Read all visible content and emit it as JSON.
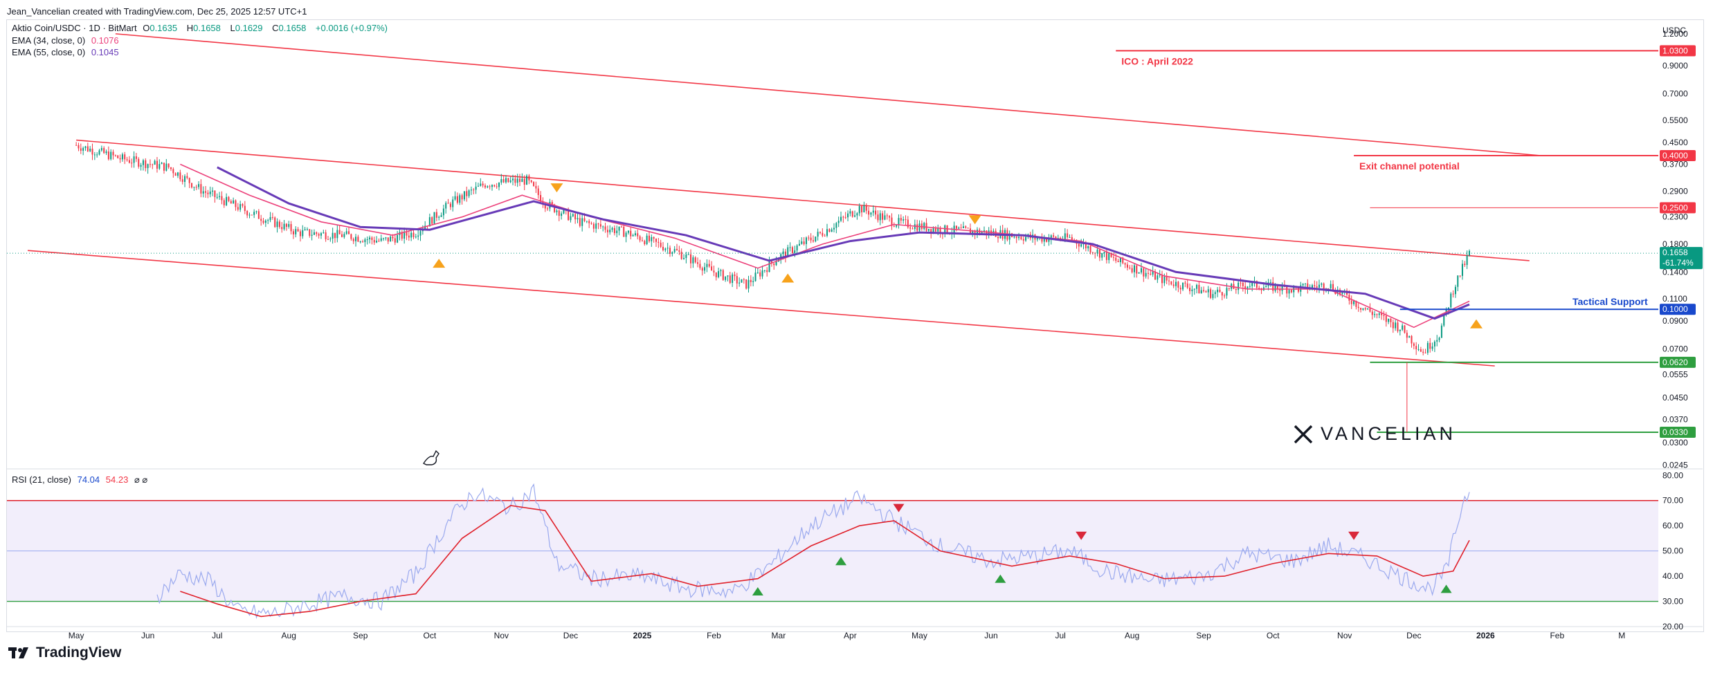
{
  "header": {
    "credit": "Jean_Vancelian created with TradingView.com, Dec 25, 2025 12:57 UTC+1"
  },
  "legend": {
    "symbol": "Aktio Coin/USDC · 1D · BitMart",
    "o_label": "O",
    "o": "0.1635",
    "h_label": "H",
    "h": "0.1658",
    "l_label": "L",
    "l": "0.1629",
    "c_label": "C",
    "c": "0.1658",
    "change": "+0.0016 (+0.97%)",
    "ema34_label": "EMA (34, close, 0)",
    "ema34": "0.1076",
    "ema55_label": "EMA (55, close, 0)",
    "ema55": "0.1045",
    "rsi_label": "RSI (21, close)",
    "rsi_value": "74.04",
    "rsi_ma": "54.23",
    "rsi_extra": "⌀ ⌀"
  },
  "brand": {
    "name": "TradingView",
    "watermark": "VANCELIAN"
  },
  "colors": {
    "up": "#089981",
    "down": "#f23645",
    "ema34": "#ec407a",
    "ema55": "#673ab7",
    "channel": "#f23645",
    "support": "#1848cc",
    "green_level": "#2e9e3f",
    "rsi": "#9aa9ee",
    "rsi_ma": "#e0202a"
  },
  "chart_data": [
    {
      "type": "candlestick",
      "title": "Aktio Coin/USDC · 1D · BitMart",
      "y_scale": "log",
      "y_unit": "USDC",
      "ylim": [
        0.024,
        1.35
      ],
      "x_range": [
        "2024-04-01",
        "2026-03-15"
      ],
      "x_ticks": [
        {
          "date": "2024-05-01",
          "label": "May"
        },
        {
          "date": "2024-06-01",
          "label": "Jun"
        },
        {
          "date": "2024-07-01",
          "label": "Jul"
        },
        {
          "date": "2024-08-01",
          "label": "Aug"
        },
        {
          "date": "2024-09-01",
          "label": "Sep"
        },
        {
          "date": "2024-10-01",
          "label": "Oct"
        },
        {
          "date": "2024-11-01",
          "label": "Nov"
        },
        {
          "date": "2024-12-01",
          "label": "Dec"
        },
        {
          "date": "2025-01-01",
          "label": "2025"
        },
        {
          "date": "2025-02-01",
          "label": "Feb"
        },
        {
          "date": "2025-03-01",
          "label": "Mar"
        },
        {
          "date": "2025-04-01",
          "label": "Apr"
        },
        {
          "date": "2025-05-01",
          "label": "May"
        },
        {
          "date": "2025-06-01",
          "label": "Jun"
        },
        {
          "date": "2025-07-01",
          "label": "Jul"
        },
        {
          "date": "2025-08-01",
          "label": "Aug"
        },
        {
          "date": "2025-09-01",
          "label": "Sep"
        },
        {
          "date": "2025-10-01",
          "label": "Oct"
        },
        {
          "date": "2025-11-01",
          "label": "Nov"
        },
        {
          "date": "2025-12-01",
          "label": "Dec"
        },
        {
          "date": "2026-01-01",
          "label": "2026"
        },
        {
          "date": "2026-02-01",
          "label": "Feb"
        },
        {
          "date": "2026-03-01",
          "label": "M"
        }
      ],
      "y_ticks": [
        {
          "value": 1.2,
          "label": "1.2000"
        },
        {
          "value": 0.9,
          "label": "0.9000"
        },
        {
          "value": 0.7,
          "label": "0.7000"
        },
        {
          "value": 0.55,
          "label": "0.5500"
        },
        {
          "value": 0.45,
          "label": "0.4500"
        },
        {
          "value": 0.37,
          "label": "0.3700"
        },
        {
          "value": 0.29,
          "label": "0.2900"
        },
        {
          "value": 0.23,
          "label": "0.2300"
        },
        {
          "value": 0.18,
          "label": "0.1800"
        },
        {
          "value": 0.14,
          "label": "0.1400"
        },
        {
          "value": 0.11,
          "label": "0.1100"
        },
        {
          "value": 0.09,
          "label": "0.0900"
        },
        {
          "value": 0.07,
          "label": "0.0700"
        },
        {
          "value": 0.0555,
          "label": "0.0555"
        },
        {
          "value": 0.045,
          "label": "0.0450"
        },
        {
          "value": 0.037,
          "label": "0.0370"
        },
        {
          "value": 0.03,
          "label": "0.0300"
        },
        {
          "value": 0.0245,
          "label": "0.0245"
        }
      ],
      "price_path": [
        {
          "date": "2024-05-01",
          "close": 0.44
        },
        {
          "date": "2024-05-20",
          "close": 0.39
        },
        {
          "date": "2024-06-10",
          "close": 0.36
        },
        {
          "date": "2024-06-25",
          "close": 0.29
        },
        {
          "date": "2024-07-15",
          "close": 0.24
        },
        {
          "date": "2024-08-05",
          "close": 0.2
        },
        {
          "date": "2024-08-25",
          "close": 0.195
        },
        {
          "date": "2024-09-10",
          "close": 0.185
        },
        {
          "date": "2024-09-25",
          "close": 0.2
        },
        {
          "date": "2024-10-10",
          "close": 0.26
        },
        {
          "date": "2024-10-25",
          "close": 0.31
        },
        {
          "date": "2024-11-12",
          "close": 0.32
        },
        {
          "date": "2024-11-20",
          "close": 0.26
        },
        {
          "date": "2024-12-05",
          "close": 0.22
        },
        {
          "date": "2024-12-25",
          "close": 0.2
        },
        {
          "date": "2025-01-15",
          "close": 0.17
        },
        {
          "date": "2025-02-01",
          "close": 0.14
        },
        {
          "date": "2025-02-15",
          "close": 0.125
        },
        {
          "date": "2025-03-01",
          "close": 0.16
        },
        {
          "date": "2025-03-20",
          "close": 0.2
        },
        {
          "date": "2025-04-05",
          "close": 0.25
        },
        {
          "date": "2025-04-20",
          "close": 0.22
        },
        {
          "date": "2025-05-10",
          "close": 0.205
        },
        {
          "date": "2025-06-01",
          "close": 0.2
        },
        {
          "date": "2025-06-20",
          "close": 0.19
        },
        {
          "date": "2025-07-05",
          "close": 0.19
        },
        {
          "date": "2025-07-25",
          "close": 0.155
        },
        {
          "date": "2025-08-15",
          "close": 0.13
        },
        {
          "date": "2025-09-05",
          "close": 0.115
        },
        {
          "date": "2025-09-20",
          "close": 0.125
        },
        {
          "date": "2025-10-10",
          "close": 0.12
        },
        {
          "date": "2025-10-25",
          "close": 0.125
        },
        {
          "date": "2025-11-10",
          "close": 0.1
        },
        {
          "date": "2025-11-25",
          "close": 0.085
        },
        {
          "date": "2025-12-05",
          "close": 0.068
        },
        {
          "date": "2025-12-12",
          "close": 0.08
        },
        {
          "date": "2025-12-18",
          "close": 0.12
        },
        {
          "date": "2025-12-25",
          "close": 0.1658
        }
      ],
      "ema34_path": [
        {
          "date": "2024-06-15",
          "value": 0.37
        },
        {
          "date": "2024-07-15",
          "value": 0.28
        },
        {
          "date": "2024-08-15",
          "value": 0.22
        },
        {
          "date": "2024-09-15",
          "value": 0.195
        },
        {
          "date": "2024-10-15",
          "value": 0.23
        },
        {
          "date": "2024-11-10",
          "value": 0.28
        },
        {
          "date": "2024-12-10",
          "value": 0.23
        },
        {
          "date": "2025-01-15",
          "value": 0.19
        },
        {
          "date": "2025-02-20",
          "value": 0.145
        },
        {
          "date": "2025-03-20",
          "value": 0.18
        },
        {
          "date": "2025-04-20",
          "value": 0.215
        },
        {
          "date": "2025-06-01",
          "value": 0.2
        },
        {
          "date": "2025-07-10",
          "value": 0.185
        },
        {
          "date": "2025-08-15",
          "value": 0.135
        },
        {
          "date": "2025-09-20",
          "value": 0.12
        },
        {
          "date": "2025-10-25",
          "value": 0.12
        },
        {
          "date": "2025-12-01",
          "value": 0.085
        },
        {
          "date": "2025-12-25",
          "value": 0.1076
        }
      ],
      "ema55_path": [
        {
          "date": "2024-07-01",
          "value": 0.36
        },
        {
          "date": "2024-08-01",
          "value": 0.26
        },
        {
          "date": "2024-09-01",
          "value": 0.21
        },
        {
          "date": "2024-10-01",
          "value": 0.205
        },
        {
          "date": "2024-11-15",
          "value": 0.265
        },
        {
          "date": "2024-12-15",
          "value": 0.225
        },
        {
          "date": "2025-01-20",
          "value": 0.195
        },
        {
          "date": "2025-02-25",
          "value": 0.155
        },
        {
          "date": "2025-04-01",
          "value": 0.185
        },
        {
          "date": "2025-05-01",
          "value": 0.2
        },
        {
          "date": "2025-06-15",
          "value": 0.195
        },
        {
          "date": "2025-07-15",
          "value": 0.18
        },
        {
          "date": "2025-08-20",
          "value": 0.14
        },
        {
          "date": "2025-10-01",
          "value": 0.125
        },
        {
          "date": "2025-11-10",
          "value": 0.115
        },
        {
          "date": "2025-12-10",
          "value": 0.092
        },
        {
          "date": "2025-12-25",
          "value": 0.1045
        }
      ],
      "channel_lines": [
        {
          "from": {
            "date": "2024-05-18",
            "value": 1.2
          },
          "to": {
            "date": "2026-01-25",
            "value": 0.4
          }
        },
        {
          "from": {
            "date": "2024-05-01",
            "value": 0.46
          },
          "to": {
            "date": "2026-01-20",
            "value": 0.155
          }
        },
        {
          "from": {
            "date": "2024-04-10",
            "value": 0.17
          },
          "to": {
            "date": "2026-01-05",
            "value": 0.06
          }
        }
      ],
      "levels": [
        {
          "value": 1.03,
          "label": "1.0300",
          "note": "ICO : April 2022",
          "color": "#f23645"
        },
        {
          "value": 0.4,
          "label": "0.4000",
          "note": "Exit channel potential",
          "color": "#f23645"
        },
        {
          "value": 0.25,
          "label": "0.2500",
          "note": "",
          "color": "#f23645"
        },
        {
          "value": 0.1,
          "label": "0.1000",
          "note": "Tactical Support",
          "color": "#1848cc"
        },
        {
          "value": 0.062,
          "label": "0.0620",
          "note": "",
          "color": "#2e9e3f"
        },
        {
          "value": 0.033,
          "label": "0.0330",
          "note": "",
          "color": "#2e9e3f"
        }
      ],
      "last_price": {
        "value": 0.1658,
        "label": "0.1658",
        "change": "-61.74%"
      },
      "markers": [
        {
          "date": "2024-10-05",
          "value": 0.152,
          "dir": "up"
        },
        {
          "date": "2024-11-25",
          "value": 0.3,
          "dir": "down"
        },
        {
          "date": "2025-03-05",
          "value": 0.133,
          "dir": "up"
        },
        {
          "date": "2025-05-25",
          "value": 0.225,
          "dir": "down"
        },
        {
          "date": "2025-12-28",
          "value": 0.088,
          "dir": "up"
        }
      ]
    },
    {
      "type": "line",
      "title": "RSI (21, close)",
      "ylim": [
        20,
        82
      ],
      "y_ticks": [
        80,
        70,
        60,
        50,
        40,
        30,
        20
      ],
      "y_tick_labels": [
        "80.00",
        "70.00",
        "60.00",
        "50.00",
        "40.00",
        "30.00",
        "20.00"
      ],
      "bands": {
        "upper": 70,
        "middle": 50,
        "lower": 30
      },
      "series": [
        {
          "values_by_date": [
            {
              "date": "2024-06-05",
              "value": 32
            },
            {
              "date": "2024-06-15",
              "value": 41
            },
            {
              "date": "2024-06-28",
              "value": 38
            },
            {
              "date": "2024-07-10",
              "value": 26
            },
            {
              "date": "2024-07-25",
              "value": 25
            },
            {
              "date": "2024-08-10",
              "value": 29
            },
            {
              "date": "2024-08-25",
              "value": 32
            },
            {
              "date": "2024-09-10",
              "value": 30
            },
            {
              "date": "2024-09-25",
              "value": 41
            },
            {
              "date": "2024-10-10",
              "value": 63
            },
            {
              "date": "2024-10-20",
              "value": 73
            },
            {
              "date": "2024-11-05",
              "value": 67
            },
            {
              "date": "2024-11-15",
              "value": 74
            },
            {
              "date": "2024-11-25",
              "value": 45
            },
            {
              "date": "2024-12-10",
              "value": 39
            },
            {
              "date": "2025-01-01",
              "value": 40
            },
            {
              "date": "2025-01-20",
              "value": 35
            },
            {
              "date": "2025-02-10",
              "value": 34
            },
            {
              "date": "2025-02-25",
              "value": 44
            },
            {
              "date": "2025-03-15",
              "value": 60
            },
            {
              "date": "2025-04-05",
              "value": 71
            },
            {
              "date": "2025-04-20",
              "value": 62
            },
            {
              "date": "2025-05-10",
              "value": 52
            },
            {
              "date": "2025-06-01",
              "value": 46
            },
            {
              "date": "2025-06-20",
              "value": 48
            },
            {
              "date": "2025-07-05",
              "value": 50
            },
            {
              "date": "2025-07-20",
              "value": 42
            },
            {
              "date": "2025-08-10",
              "value": 38
            },
            {
              "date": "2025-09-01",
              "value": 40
            },
            {
              "date": "2025-09-20",
              "value": 49
            },
            {
              "date": "2025-10-10",
              "value": 46
            },
            {
              "date": "2025-10-25",
              "value": 52
            },
            {
              "date": "2025-11-10",
              "value": 47
            },
            {
              "date": "2025-11-25",
              "value": 40
            },
            {
              "date": "2025-12-08",
              "value": 35
            },
            {
              "date": "2025-12-15",
              "value": 42
            },
            {
              "date": "2025-12-22",
              "value": 69
            },
            {
              "date": "2025-12-25",
              "value": 74.04
            }
          ]
        },
        {
          "values_by_date": [
            {
              "date": "2024-06-15",
              "value": 34
            },
            {
              "date": "2024-07-01",
              "value": 29
            },
            {
              "date": "2024-07-20",
              "value": 24
            },
            {
              "date": "2024-08-10",
              "value": 26
            },
            {
              "date": "2024-09-01",
              "value": 30
            },
            {
              "date": "2024-09-25",
              "value": 33
            },
            {
              "date": "2024-10-15",
              "value": 55
            },
            {
              "date": "2024-11-05",
              "value": 68
            },
            {
              "date": "2024-11-20",
              "value": 66
            },
            {
              "date": "2024-12-10",
              "value": 38
            },
            {
              "date": "2025-01-05",
              "value": 41
            },
            {
              "date": "2025-01-25",
              "value": 36
            },
            {
              "date": "2025-02-20",
              "value": 39
            },
            {
              "date": "2025-03-15",
              "value": 52
            },
            {
              "date": "2025-04-05",
              "value": 60
            },
            {
              "date": "2025-04-20",
              "value": 62
            },
            {
              "date": "2025-05-10",
              "value": 50
            },
            {
              "date": "2025-06-10",
              "value": 44
            },
            {
              "date": "2025-07-05",
              "value": 48
            },
            {
              "date": "2025-07-25",
              "value": 45
            },
            {
              "date": "2025-08-15",
              "value": 39
            },
            {
              "date": "2025-09-10",
              "value": 40
            },
            {
              "date": "2025-10-01",
              "value": 45
            },
            {
              "date": "2025-10-25",
              "value": 49
            },
            {
              "date": "2025-11-15",
              "value": 48
            },
            {
              "date": "2025-12-05",
              "value": 40
            },
            {
              "date": "2025-12-18",
              "value": 42
            },
            {
              "date": "2025-12-25",
              "value": 54.23
            }
          ]
        }
      ],
      "markers": [
        {
          "date": "2025-02-20",
          "value": 34,
          "dir": "up",
          "color": "#2e9e3f"
        },
        {
          "date": "2025-03-28",
          "value": 46,
          "dir": "up",
          "color": "#2e9e3f"
        },
        {
          "date": "2025-04-22",
          "value": 67,
          "dir": "down",
          "color": "#d9283a"
        },
        {
          "date": "2025-06-05",
          "value": 39,
          "dir": "up",
          "color": "#2e9e3f"
        },
        {
          "date": "2025-07-10",
          "value": 56,
          "dir": "down",
          "color": "#d9283a"
        },
        {
          "date": "2025-11-05",
          "value": 56,
          "dir": "down",
          "color": "#d9283a"
        },
        {
          "date": "2025-12-15",
          "value": 35,
          "dir": "up",
          "color": "#2e9e3f"
        }
      ]
    }
  ]
}
